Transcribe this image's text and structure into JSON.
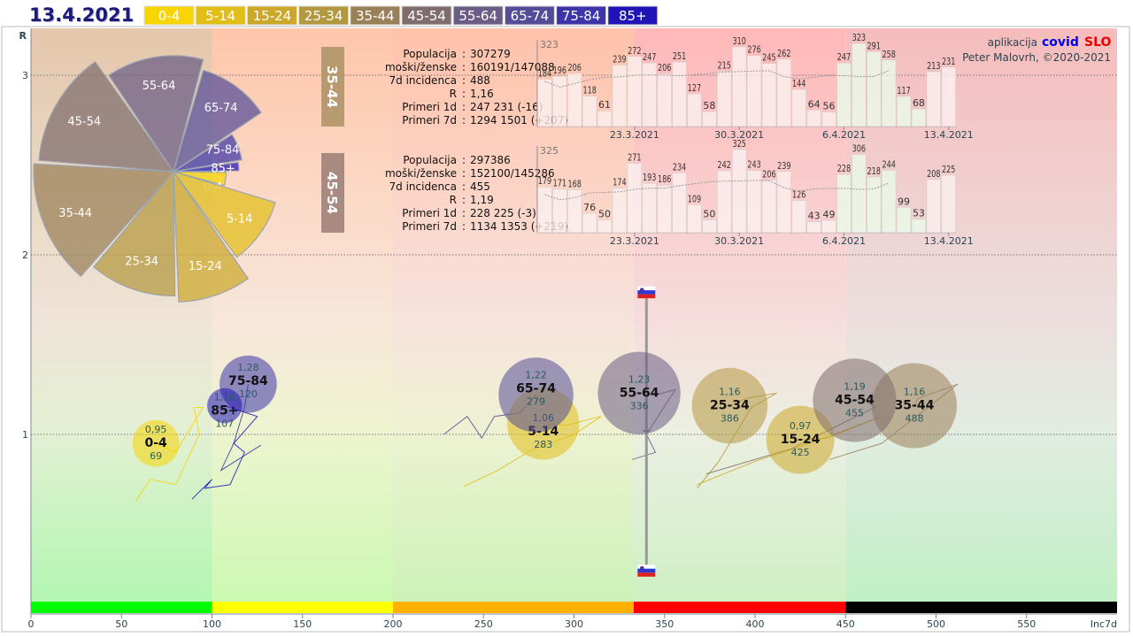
{
  "header": {
    "date": "13.4.2021",
    "legend": [
      {
        "label": "0-4",
        "color": "#f8d400"
      },
      {
        "label": "5-14",
        "color": "#e2be18"
      },
      {
        "label": "15-24",
        "color": "#cca82a"
      },
      {
        "label": "25-34",
        "color": "#b49840"
      },
      {
        "label": "35-44",
        "color": "#9a8058"
      },
      {
        "label": "45-54",
        "color": "#806c6c"
      },
      {
        "label": "55-64",
        "color": "#6a5c84"
      },
      {
        "label": "65-74",
        "color": "#544c98"
      },
      {
        "label": "75-84",
        "color": "#3c34a8"
      },
      {
        "label": "85+",
        "color": "#2014b8"
      }
    ]
  },
  "credits": {
    "app_prefix": "aplikacija",
    "app_name_a": "covid",
    "app_name_b": "SLO",
    "author": "Peter Malovrh, ©2020-2021"
  },
  "chart_data": {
    "type": "scatter",
    "title": "13.4.2021",
    "xlabel": "Inc7d",
    "ylabel": "R",
    "xlim": [
      0,
      600
    ],
    "ylim": [
      0,
      3.3
    ],
    "x_ticks": [
      "0",
      "50",
      "100",
      "150",
      "200",
      "250",
      "300",
      "350",
      "400",
      "450",
      "500",
      "550"
    ],
    "y_ticks": [
      "1",
      "2",
      "3"
    ],
    "incidence_bands": [
      {
        "from": 0,
        "to": 100,
        "color": "#00ff00"
      },
      {
        "from": 100,
        "to": 200,
        "color": "#ffff00"
      },
      {
        "from": 200,
        "to": 333,
        "color": "#ffb000"
      },
      {
        "from": 333,
        "to": 450,
        "color": "#ff0000"
      },
      {
        "from": 450,
        "to": 600,
        "color": "#000000"
      }
    ],
    "groups": [
      {
        "name": "0-4",
        "r_label": "0,95",
        "r": 0.95,
        "inc_label": "69",
        "inc": 69,
        "share": 16,
        "trail": [
          [
            58,
            0.63
          ],
          [
            66,
            0.75
          ],
          [
            80,
            0.72
          ],
          [
            93,
            1.0
          ],
          [
            90,
            1.15
          ],
          [
            95,
            1.15
          ],
          [
            80,
            0.9
          ],
          [
            69,
            0.95
          ]
        ]
      },
      {
        "name": "5-14",
        "r_label": "1,06",
        "r": 1.06,
        "inc_label": "283",
        "inc": 283,
        "share": 38,
        "trail": [
          [
            239,
            0.71
          ],
          [
            258,
            0.8
          ],
          [
            276,
            0.91
          ],
          [
            300,
            1.0
          ],
          [
            315,
            1.1
          ],
          [
            295,
            1.05
          ],
          [
            283,
            1.06
          ]
        ]
      },
      {
        "name": "15-24",
        "r_label": "0,97",
        "r": 0.97,
        "inc_label": "425",
        "inc": 425,
        "share": 34,
        "trail": [
          [
            368,
            0.72
          ],
          [
            400,
            0.85
          ],
          [
            430,
            0.95
          ],
          [
            470,
            1.1
          ],
          [
            440,
            0.98
          ],
          [
            425,
            0.97
          ]
        ]
      },
      {
        "name": "25-34",
        "r_label": "1,16",
        "r": 1.16,
        "inc_label": "386",
        "inc": 386,
        "share": 42,
        "trail": [
          [
            368,
            0.7
          ],
          [
            380,
            0.85
          ],
          [
            398,
            1.15
          ],
          [
            412,
            1.23
          ],
          [
            395,
            1.2
          ],
          [
            386,
            1.16
          ]
        ]
      },
      {
        "name": "35-44",
        "r_label": "1,16",
        "r": 1.16,
        "inc_label": "488",
        "inc": 488,
        "share": 53,
        "trail": [
          [
            441,
            0.86
          ],
          [
            470,
            0.95
          ],
          [
            512,
            1.28
          ],
          [
            490,
            1.2
          ],
          [
            488,
            1.16
          ]
        ]
      },
      {
        "name": "45-54",
        "r_label": "1,19",
        "r": 1.19,
        "inc_label": "455",
        "inc": 455,
        "share": 51,
        "trail": [
          [
            373,
            0.78
          ],
          [
            420,
            0.92
          ],
          [
            466,
            1.15
          ],
          [
            460,
            1.2
          ],
          [
            455,
            1.19
          ]
        ]
      },
      {
        "name": "55-64",
        "r_label": "1,23",
        "r": 1.23,
        "inc_label": "336",
        "inc": 336,
        "share": 50,
        "trail": [
          [
            332,
            0.86
          ],
          [
            345,
            0.9
          ],
          [
            340,
            1.0
          ],
          [
            356,
            1.25
          ],
          [
            345,
            1.22
          ],
          [
            336,
            1.23
          ]
        ]
      },
      {
        "name": "65-74",
        "r_label": "1,22",
        "r": 1.22,
        "inc_label": "279",
        "inc": 279,
        "share": 41,
        "trail": [
          [
            228,
            1.0
          ],
          [
            241,
            1.1
          ],
          [
            249,
            0.98
          ],
          [
            256,
            1.1
          ],
          [
            270,
            1.12
          ],
          [
            279,
            1.22
          ]
        ]
      },
      {
        "name": "75-84",
        "r_label": "1,28",
        "r": 1.28,
        "inc_label": "120",
        "inc": 120,
        "share": 24,
        "trail": [
          [
            127,
            0.94
          ],
          [
            105,
            0.8
          ],
          [
            112,
            0.95
          ],
          [
            115,
            1.05
          ],
          [
            118,
            1.15
          ],
          [
            120,
            1.28
          ]
        ]
      },
      {
        "name": "85+",
        "r_label": "1,16",
        "r": 1.16,
        "inc_label": "107",
        "inc": 107,
        "share": 9,
        "trail": [
          [
            89,
            0.64
          ],
          [
            100,
            0.75
          ],
          [
            96,
            0.7
          ],
          [
            110,
            0.72
          ],
          [
            118,
            0.9
          ],
          [
            112,
            0.95
          ],
          [
            125,
            1.1
          ],
          [
            107,
            1.16
          ]
        ]
      }
    ],
    "slovenia": {
      "inc7d": 340,
      "r_low": 0.24,
      "r_high": 1.79,
      "r_mark": 1.02
    },
    "panels": [
      {
        "group": "35-44",
        "color": "#b89a70",
        "rows": [
          {
            "label": "Populacija",
            "value": "307279"
          },
          {
            "label": "moški/ženske",
            "value": "160191/147088"
          },
          {
            "label": "7d incidenca",
            "value": "488"
          },
          {
            "label": "R",
            "value": "1,16"
          },
          {
            "label": "Primeri 1d",
            "value": "247 231 (-16)"
          },
          {
            "label": "Primeri 7d",
            "value": "1294 1501 (+207)"
          }
        ],
        "max_label": "323",
        "daily": [
          184,
          196,
          206,
          118,
          61,
          239,
          272,
          247,
          206,
          251,
          127,
          58,
          215,
          310,
          276,
          245,
          262,
          144,
          64,
          56,
          247,
          323,
          291,
          258,
          117,
          68,
          213,
          231
        ],
        "dates": [
          "23.3.2021",
          "30.3.2021",
          "6.4.2021",
          "13.4.2021"
        ]
      },
      {
        "group": "45-54",
        "color": "#a88a80",
        "rows": [
          {
            "label": "Populacija",
            "value": "297386"
          },
          {
            "label": "moški/ženske",
            "value": "152100/145286"
          },
          {
            "label": "7d incidenca",
            "value": "455"
          },
          {
            "label": "R",
            "value": "1,19"
          },
          {
            "label": "Primeri 1d",
            "value": "228 225 (-3)"
          },
          {
            "label": "Primeri 7d",
            "value": "1134 1353 (+219)"
          }
        ],
        "max_label": "325",
        "daily": [
          179,
          171,
          168,
          76,
          50,
          174,
          271,
          193,
          186,
          234,
          109,
          50,
          242,
          325,
          243,
          206,
          239,
          126,
          43,
          49,
          228,
          306,
          218,
          244,
          99,
          53,
          208,
          225
        ],
        "dates": [
          "23.3.2021",
          "30.3.2021",
          "6.4.2021",
          "13.4.2021"
        ]
      }
    ]
  }
}
